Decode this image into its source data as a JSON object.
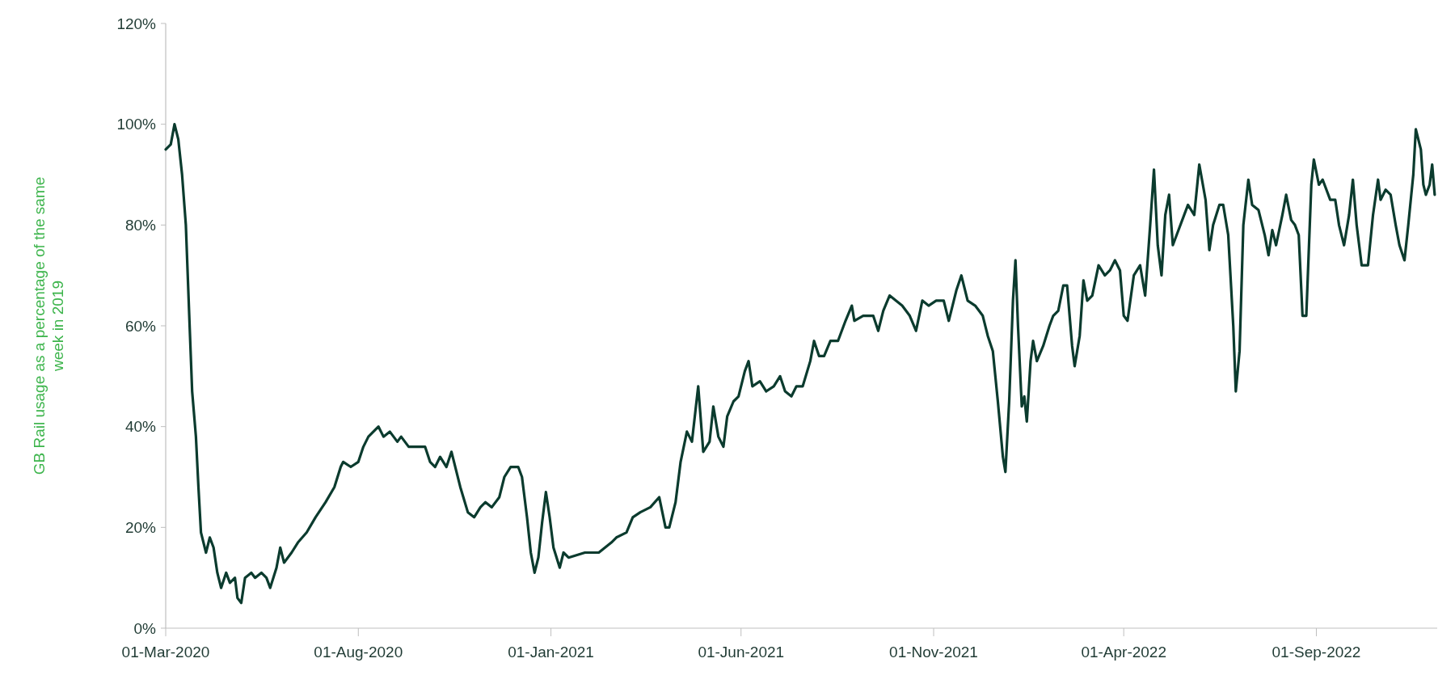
{
  "chart_data": {
    "type": "line",
    "ylabel": "GB Rail usage as a percentage of the same week in 2019",
    "x": [
      "2020-03-01",
      "2020-03-05",
      "2020-03-08",
      "2020-03-11",
      "2020-03-14",
      "2020-03-17",
      "2020-03-20",
      "2020-03-22",
      "2020-03-25",
      "2020-03-27",
      "2020-03-29",
      "2020-04-02",
      "2020-04-05",
      "2020-04-08",
      "2020-04-11",
      "2020-04-14",
      "2020-04-18",
      "2020-04-21",
      "2020-04-25",
      "2020-04-27",
      "2020-04-30",
      "2020-05-03",
      "2020-05-08",
      "2020-05-11",
      "2020-05-16",
      "2020-05-20",
      "2020-05-23",
      "2020-05-28",
      "2020-05-31",
      "2020-06-03",
      "2020-06-09",
      "2020-06-14",
      "2020-06-21",
      "2020-06-28",
      "2020-07-06",
      "2020-07-13",
      "2020-07-18",
      "2020-07-20",
      "2020-07-26",
      "2020-08-01",
      "2020-08-05",
      "2020-08-09",
      "2020-08-13",
      "2020-08-17",
      "2020-08-21",
      "2020-08-26",
      "2020-09-01",
      "2020-09-04",
      "2020-09-10",
      "2020-09-23",
      "2020-09-27",
      "2020-10-01",
      "2020-10-05",
      "2020-10-10",
      "2020-10-14",
      "2020-10-21",
      "2020-10-27",
      "2020-11-01",
      "2020-11-06",
      "2020-11-10",
      "2020-11-15",
      "2020-11-21",
      "2020-11-25",
      "2020-11-30",
      "2020-12-06",
      "2020-12-09",
      "2020-12-13",
      "2020-12-16",
      "2020-12-19",
      "2020-12-22",
      "2020-12-25",
      "2020-12-28",
      "2020-12-31",
      "2021-01-03",
      "2021-01-08",
      "2021-01-11",
      "2021-01-15",
      "2021-01-28",
      "2021-02-08",
      "2021-02-13",
      "2021-02-18",
      "2021-02-22",
      "2021-03-02",
      "2021-03-07",
      "2021-03-13",
      "2021-03-21",
      "2021-03-28",
      "2021-04-02",
      "2021-04-05",
      "2021-04-10",
      "2021-04-14",
      "2021-04-19",
      "2021-04-23",
      "2021-04-28",
      "2021-05-02",
      "2021-05-07",
      "2021-05-10",
      "2021-05-14",
      "2021-05-18",
      "2021-05-21",
      "2021-05-26",
      "2021-05-30",
      "2021-06-04",
      "2021-06-07",
      "2021-06-10",
      "2021-06-16",
      "2021-06-21",
      "2021-06-27",
      "2021-07-02",
      "2021-07-06",
      "2021-07-11",
      "2021-07-15",
      "2021-07-20",
      "2021-07-26",
      "2021-07-29",
      "2021-08-02",
      "2021-08-06",
      "2021-08-11",
      "2021-08-17",
      "2021-08-23",
      "2021-08-28",
      "2021-08-30",
      "2021-09-06",
      "2021-09-14",
      "2021-09-18",
      "2021-09-22",
      "2021-09-27",
      "2021-10-02",
      "2021-10-07",
      "2021-10-13",
      "2021-10-18",
      "2021-10-23",
      "2021-10-28",
      "2021-11-03",
      "2021-11-09",
      "2021-11-13",
      "2021-11-19",
      "2021-11-23",
      "2021-11-28",
      "2021-12-04",
      "2021-12-10",
      "2021-12-14",
      "2021-12-18",
      "2021-12-22",
      "2021-12-26",
      "2021-12-28",
      "2021-12-31",
      "2022-01-03",
      "2022-01-05",
      "2022-01-07",
      "2022-01-10",
      "2022-01-12",
      "2022-01-14",
      "2022-01-17",
      "2022-01-19",
      "2022-01-22",
      "2022-01-27",
      "2022-02-01",
      "2022-02-04",
      "2022-02-08",
      "2022-02-12",
      "2022-02-15",
      "2022-02-19",
      "2022-02-21",
      "2022-02-25",
      "2022-02-28",
      "2022-03-03",
      "2022-03-07",
      "2022-03-12",
      "2022-03-17",
      "2022-03-21",
      "2022-03-25",
      "2022-03-29",
      "2022-04-01",
      "2022-04-04",
      "2022-04-09",
      "2022-04-14",
      "2022-04-18",
      "2022-04-22",
      "2022-04-25",
      "2022-04-28",
      "2022-05-01",
      "2022-05-04",
      "2022-05-07",
      "2022-05-10",
      "2022-05-13",
      "2022-05-19",
      "2022-05-22",
      "2022-05-27",
      "2022-05-31",
      "2022-06-05",
      "2022-06-08",
      "2022-06-11",
      "2022-06-16",
      "2022-06-19",
      "2022-06-23",
      "2022-06-27",
      "2022-06-29",
      "2022-07-02",
      "2022-07-05",
      "2022-07-09",
      "2022-07-12",
      "2022-07-17",
      "2022-07-22",
      "2022-07-25",
      "2022-07-28",
      "2022-07-31",
      "2022-08-05",
      "2022-08-08",
      "2022-08-12",
      "2022-08-15",
      "2022-08-18",
      "2022-08-21",
      "2022-08-24",
      "2022-08-28",
      "2022-08-30",
      "2022-09-03",
      "2022-09-06",
      "2022-09-12",
      "2022-09-16",
      "2022-09-19",
      "2022-09-23",
      "2022-09-27",
      "2022-09-30",
      "2022-10-03",
      "2022-10-07",
      "2022-10-12",
      "2022-10-16",
      "2022-10-20",
      "2022-10-22",
      "2022-10-26",
      "2022-10-30",
      "2022-11-03",
      "2022-11-06",
      "2022-11-10",
      "2022-11-13",
      "2022-11-17",
      "2022-11-19",
      "2022-11-23",
      "2022-11-25",
      "2022-11-27",
      "2022-11-30",
      "2022-12-02",
      "2022-12-04"
    ],
    "series": [
      {
        "color": "#0b3b2e",
        "values": [
          95,
          96,
          100,
          97,
          90,
          80,
          60,
          47,
          38,
          28,
          19,
          15,
          18,
          16,
          11,
          8,
          11,
          9,
          10,
          6,
          5,
          10,
          11,
          10,
          11,
          10,
          8,
          12,
          16,
          13,
          15,
          17,
          19,
          22,
          25,
          28,
          32,
          33,
          32,
          33,
          36,
          38,
          39,
          40,
          38,
          39,
          37,
          38,
          36,
          36,
          33,
          32,
          34,
          32,
          35,
          28,
          23,
          22,
          24,
          25,
          24,
          26,
          30,
          32,
          32,
          30,
          22,
          15,
          11,
          14,
          21,
          27,
          22,
          16,
          12,
          15,
          14,
          15,
          15,
          16,
          17,
          18,
          19,
          22,
          23,
          24,
          26,
          20,
          20,
          25,
          33,
          39,
          37,
          48,
          35,
          37,
          44,
          38,
          36,
          42,
          45,
          46,
          51,
          53,
          48,
          49,
          47,
          48,
          50,
          47,
          46,
          48,
          48,
          53,
          57,
          54,
          54,
          57,
          57,
          61,
          64,
          61,
          62,
          62,
          59,
          63,
          66,
          65,
          64,
          62,
          59,
          65,
          64,
          65,
          65,
          61,
          67,
          70,
          65,
          64,
          62,
          58,
          55,
          45,
          34,
          31,
          45,
          65,
          73,
          60,
          44,
          46,
          41,
          53,
          57,
          53,
          56,
          60,
          62,
          63,
          68,
          68,
          56,
          52,
          58,
          69,
          65,
          66,
          72,
          70,
          71,
          73,
          71,
          62,
          61,
          70,
          72,
          66,
          80,
          91,
          76,
          70,
          82,
          86,
          76,
          78,
          82,
          84,
          82,
          92,
          85,
          75,
          80,
          84,
          84,
          78,
          60,
          47,
          55,
          80,
          89,
          84,
          83,
          78,
          74,
          79,
          76,
          82,
          86,
          81,
          80,
          78,
          62,
          62,
          88,
          93,
          88,
          89,
          85,
          85,
          80,
          76,
          82,
          89,
          80,
          72,
          72,
          82,
          89,
          85,
          87,
          86,
          80,
          76,
          73,
          80,
          90,
          99,
          95,
          88,
          86,
          88,
          92,
          86
        ]
      }
    ],
    "xlim": [
      "2020-03-01",
      "2022-12-06"
    ],
    "xticks": [
      {
        "value": "2020-03-01",
        "label": "01-Mar-2020"
      },
      {
        "value": "2020-08-01",
        "label": "01-Aug-2020"
      },
      {
        "value": "2021-01-01",
        "label": "01-Jan-2021"
      },
      {
        "value": "2021-06-01",
        "label": "01-Jun-2021"
      },
      {
        "value": "2021-11-01",
        "label": "01-Nov-2021"
      },
      {
        "value": "2022-04-01",
        "label": "01-Apr-2022"
      },
      {
        "value": "2022-09-01",
        "label": "01-Sep-2022"
      }
    ],
    "ylim": [
      0,
      120
    ],
    "yticks": [
      {
        "value": 0,
        "label": "0%"
      },
      {
        "value": 20,
        "label": "20%"
      },
      {
        "value": 40,
        "label": "40%"
      },
      {
        "value": 60,
        "label": "60%"
      },
      {
        "value": 80,
        "label": "80%"
      },
      {
        "value": 100,
        "label": "100%"
      },
      {
        "value": 120,
        "label": "120%"
      }
    ],
    "line_style": "solid"
  }
}
